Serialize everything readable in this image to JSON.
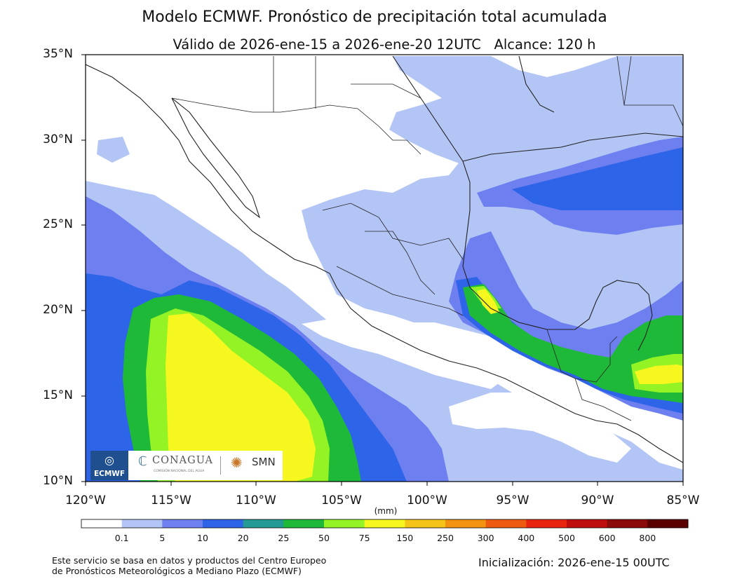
{
  "title": "Modelo ECMWF. Pronóstico de precipitación total acumulada",
  "subtitle": "Válido de 2026-ene-15 a 2026-ene-20 12UTC   Alcance: 120 h",
  "map": {
    "lat_labels": [
      "35°N",
      "30°N",
      "25°N",
      "20°N",
      "15°N",
      "10°N"
    ],
    "lon_labels": [
      "120°W",
      "115°W",
      "110°W",
      "105°W",
      "100°W",
      "95°W",
      "90°W",
      "85°W"
    ],
    "extent": {
      "lon": [
        -120,
        -85
      ],
      "lat": [
        10,
        35
      ]
    }
  },
  "colorbar": {
    "unit": "(mm)",
    "labels": [
      "0.1",
      "5",
      "10",
      "20",
      "25",
      "50",
      "75",
      "150",
      "250",
      "300",
      "400",
      "500",
      "600",
      "800"
    ],
    "colors": [
      "#ffffff",
      "#b3c5f5",
      "#6e7ff0",
      "#2d64e8",
      "#239b94",
      "#1fb93a",
      "#93f325",
      "#f7f720",
      "#f5c418",
      "#f39210",
      "#ee5b10",
      "#e8260f",
      "#bf0e0e",
      "#8b0a0a",
      "#5a0000"
    ]
  },
  "logos": {
    "ecmwf": "ECMWF",
    "conagua": "CONAGUA",
    "conagua_sub": "COMISIÓN NACIONAL DEL AGUA",
    "smn": "SMN"
  },
  "footer": {
    "source_line1": "Este servicio se basa en datos y productos del Centro Europeo",
    "source_line2": "de Pronósticos Meteorológicos a Mediano Plazo (ECMWF)",
    "init": "Inicialización: 2026-ene-15 00UTC"
  }
}
